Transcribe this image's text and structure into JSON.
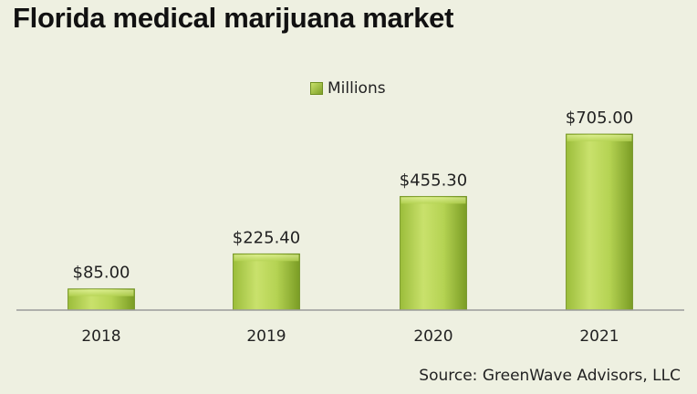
{
  "chart_data": {
    "type": "bar",
    "title": "Florida medical marijuana market",
    "categories": [
      "2018",
      "2019",
      "2020",
      "2021"
    ],
    "series": [
      {
        "name": "Millions",
        "values": [
          85.0,
          225.4,
          455.3,
          705.0
        ]
      }
    ],
    "data_labels": [
      "$85.00",
      "$225.40",
      "$455.30",
      "$705.00"
    ],
    "ylim": [
      0,
      705
    ],
    "grid": false,
    "legend": "top-center",
    "source": "Source: GreenWave  Advisors, LLC"
  },
  "colors": {
    "background": "#eef0e1",
    "bar_light": "#c9e16c",
    "bar_dark": "#7a9c24",
    "axis": "#9a9a9a"
  }
}
